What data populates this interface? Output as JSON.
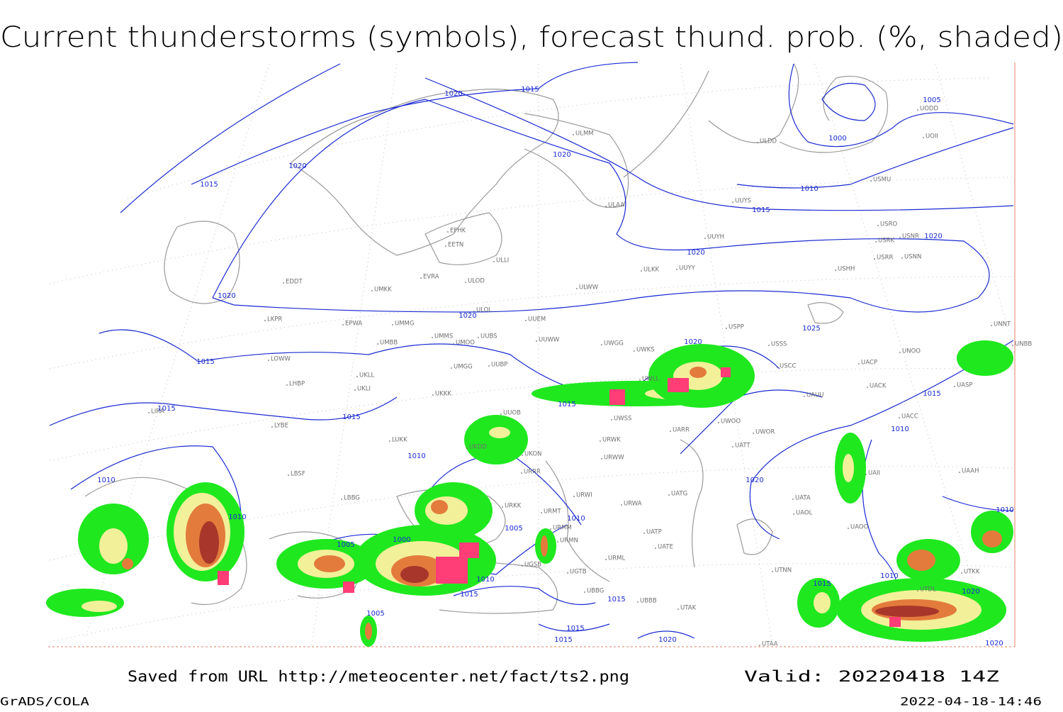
{
  "header": {
    "title": "Current thunderstorms (symbols), forecast thund. prob. (%, shaded)"
  },
  "footer": {
    "source": "Saved from URL http://meteocenter.net/fact/ts2.png",
    "valid": "Valid: 20220418 14Z",
    "software": "GrADS/COLA",
    "timestamp": "2022-04-18-14:46"
  },
  "isobar_labels": [
    "1020",
    "1015",
    "1005",
    "1000",
    "1020",
    "1020",
    "1015",
    "1010",
    "1015",
    "1020",
    "1020",
    "1020",
    "1020",
    "1025",
    "1020",
    "1015",
    "1015",
    "1015",
    "1015",
    "1015",
    "1010",
    "1010",
    "1010",
    "1020",
    "1010",
    "1005",
    "1010",
    "1000",
    "1005",
    "1010",
    "1015",
    "1015",
    "1015",
    "1010",
    "1020",
    "1005",
    "1015",
    "1015",
    "1020",
    "1020",
    "1010"
  ],
  "stations": [
    "ULMM",
    "ULDD",
    "UODD",
    "UOII",
    "USMU",
    "UUYS",
    "ULAA",
    "USRO",
    "USRK",
    "USNR",
    "UUYH",
    "USRR",
    "USNN",
    "EFHK",
    "EETN",
    "ULLI",
    "EVRA",
    "ULOD",
    "EDDT",
    "UMKK",
    "ULWW",
    "ULKK",
    "UUYY",
    "USHH",
    "UUEM",
    "EPWA",
    "UMMG",
    "ULOL",
    "LKPR",
    "USPP",
    "USSS",
    "UUWW",
    "UWGG",
    "UWKS",
    "UMMS",
    "UMOO",
    "UUBS",
    "UMBB",
    "USCC",
    "UACP",
    "UNOO",
    "UNNT",
    "UNBB",
    "LOWW",
    "UKLL",
    "UKLI",
    "LHBP",
    "UMGG",
    "UUBP",
    "UKKK",
    "UWLL",
    "UAUU",
    "UACK",
    "UASP",
    "LIRA",
    "LYBE",
    "UUOB",
    "UWSS",
    "UACC",
    "LUKK",
    "UKDD",
    "UKON",
    "URWK",
    "UWOO",
    "UWOR",
    "UATT",
    "UARR",
    "URWW",
    "URRR",
    "LBSF",
    "UAII",
    "UAAH",
    "LBBG",
    "URWI",
    "UATG",
    "UATA",
    "URKK",
    "URWA",
    "URMT",
    "UAOL",
    "UAOO",
    "URMM",
    "UATP",
    "URMN",
    "UATE",
    "URML",
    "UGSB",
    "UGTB",
    "UTNN",
    "UTKK",
    "UBBG",
    "UBBB",
    "UTDL",
    "UTAK",
    "UTAA"
  ]
}
